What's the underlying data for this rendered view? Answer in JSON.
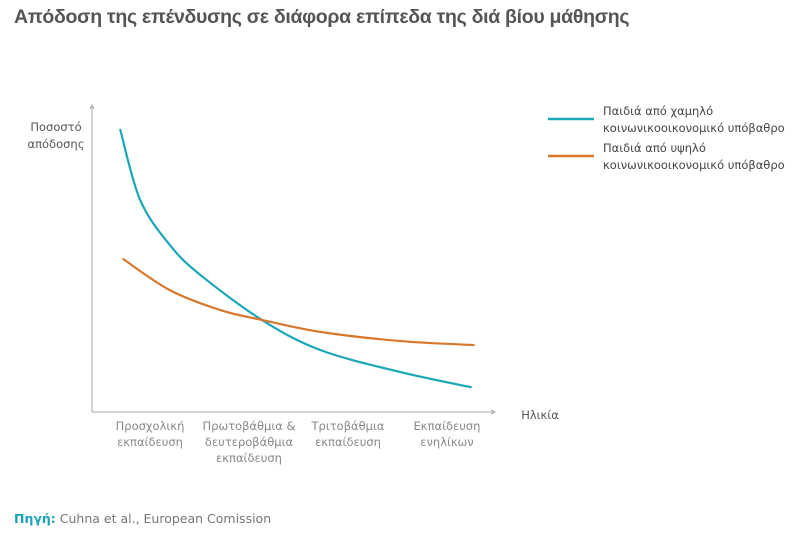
{
  "chart_data": {
    "type": "line",
    "title": "Απόδοση της επένδυσης σε διάφορα επίπεδα της διά βίου μάθησης",
    "ylabel": [
      "Ποσοστό",
      "απόδοσης"
    ],
    "xlabel": "Ηλικία",
    "categories": [
      [
        "Προσχολική",
        "εκπαίδευση"
      ],
      [
        "Πρωτοβάθμια &",
        "δευτεροβάθμια",
        "εκπαίδευση"
      ],
      [
        "Τριτοβάθμια",
        "εκπαίδευση"
      ],
      [
        "Εκπαίδευση",
        "ενηλίκων"
      ]
    ],
    "ylim": [
      0,
      100
    ],
    "xlim": [
      -0.6,
      3.45
    ],
    "grid": false,
    "legend_position": "top-right",
    "series": [
      {
        "name": [
          "Παιδιά από χαμηλό",
          "κοινωνικοοικονομικό υπόβαθρο"
        ],
        "color": "#1aa7b8",
        "x": [
          -0.3,
          -0.1,
          0.2,
          0.51,
          1.13,
          1.72,
          2.53,
          3.24
        ],
        "y": [
          91.9,
          69.1,
          54.4,
          44.6,
          30.0,
          20.2,
          13.0,
          8.1
        ]
      },
      {
        "name": [
          "Παιδιά από υψηλό",
          "κοινωνικοοικονομικό υπόβαθρο"
        ],
        "color": "#d9782d",
        "x": [
          -0.27,
          0.2,
          0.71,
          1.13,
          1.72,
          2.53,
          3.27
        ],
        "y": [
          49.8,
          39.7,
          33.2,
          30.0,
          26.1,
          23.1,
          21.8
        ]
      }
    ]
  },
  "source": {
    "label": "Πηγή:",
    "text": "Cuhna et al., European Comission"
  }
}
